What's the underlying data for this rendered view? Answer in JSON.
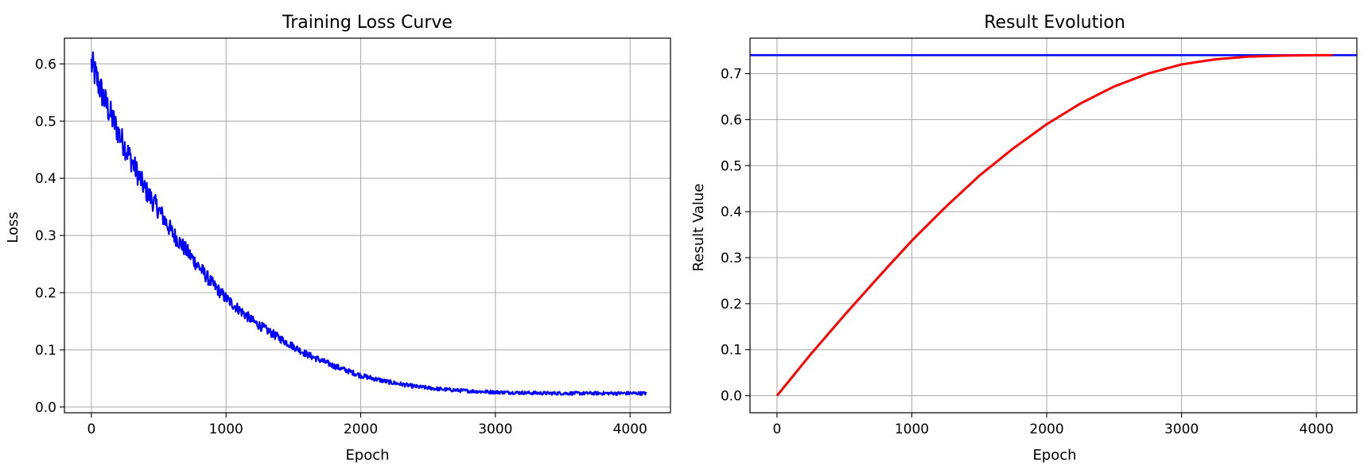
{
  "chart_data": [
    {
      "type": "line",
      "title": "Training Loss Curve",
      "xlabel": "Epoch",
      "ylabel": "Loss",
      "xlim": [
        -200,
        4300
      ],
      "ylim": [
        -0.01,
        0.645
      ],
      "xticks": [
        0,
        1000,
        2000,
        3000,
        4000
      ],
      "yticks": [
        0.0,
        0.1,
        0.2,
        0.3,
        0.4,
        0.5,
        0.6
      ],
      "xtick_labels": [
        "0",
        "1000",
        "2000",
        "3000",
        "4000"
      ],
      "ytick_labels": [
        "0.0",
        "0.1",
        "0.2",
        "0.3",
        "0.4",
        "0.5",
        "0.6"
      ],
      "grid": true,
      "series": [
        {
          "color": "#0000ff",
          "noisy": true,
          "x": [
            0,
            100,
            200,
            300,
            400,
            500,
            600,
            700,
            800,
            900,
            1000,
            1200,
            1400,
            1600,
            1800,
            2000,
            2200,
            2400,
            2600,
            2800,
            3000,
            3200,
            3400,
            3600,
            3800,
            4000,
            4120
          ],
          "y": [
            0.6,
            0.535,
            0.48,
            0.43,
            0.38,
            0.345,
            0.305,
            0.275,
            0.245,
            0.215,
            0.19,
            0.15,
            0.12,
            0.092,
            0.072,
            0.055,
            0.044,
            0.036,
            0.031,
            0.028,
            0.026,
            0.025,
            0.024,
            0.024,
            0.024,
            0.024,
            0.024
          ]
        }
      ]
    },
    {
      "type": "line",
      "title": "Result Evolution",
      "xlabel": "Epoch",
      "ylabel": "Result Value",
      "xlim": [
        -200,
        4300
      ],
      "ylim": [
        -0.037,
        0.777
      ],
      "xticks": [
        0,
        1000,
        2000,
        3000,
        4000
      ],
      "yticks": [
        0.0,
        0.1,
        0.2,
        0.3,
        0.4,
        0.5,
        0.6,
        0.7
      ],
      "xtick_labels": [
        "0",
        "1000",
        "2000",
        "3000",
        "4000"
      ],
      "ytick_labels": [
        "0.0",
        "0.1",
        "0.2",
        "0.3",
        "0.4",
        "0.5",
        "0.6",
        "0.7"
      ],
      "grid": true,
      "hline": {
        "y": 0.74,
        "color": "#0000ff"
      },
      "series": [
        {
          "color": "#ff0000",
          "x": [
            0,
            250,
            500,
            750,
            1000,
            1250,
            1500,
            1750,
            2000,
            2250,
            2500,
            2750,
            3000,
            3250,
            3500,
            3750,
            4000,
            4120
          ],
          "y": [
            0.0,
            0.09,
            0.175,
            0.257,
            0.337,
            0.41,
            0.478,
            0.537,
            0.59,
            0.635,
            0.672,
            0.7,
            0.72,
            0.731,
            0.737,
            0.739,
            0.74,
            0.74
          ]
        }
      ]
    }
  ]
}
